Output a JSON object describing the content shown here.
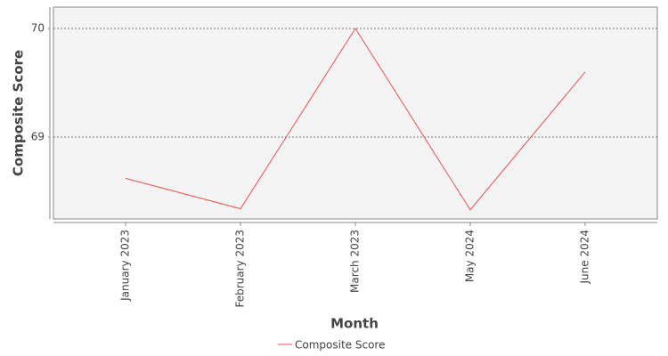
{
  "chart_data": {
    "type": "line",
    "x_label": "Month",
    "y_label": "Composite Score",
    "categories": [
      "January 2023",
      "February 2023",
      "March 2023",
      "May 2024",
      "June 2024"
    ],
    "series": [
      {
        "name": "Composite Score",
        "color": "#f05050",
        "values": [
          68.62,
          68.34,
          70.0,
          68.33,
          69.6
        ]
      }
    ],
    "ylim": [
      68.246,
      70.197
    ],
    "yticks": [
      69,
      70
    ],
    "grid": true
  }
}
